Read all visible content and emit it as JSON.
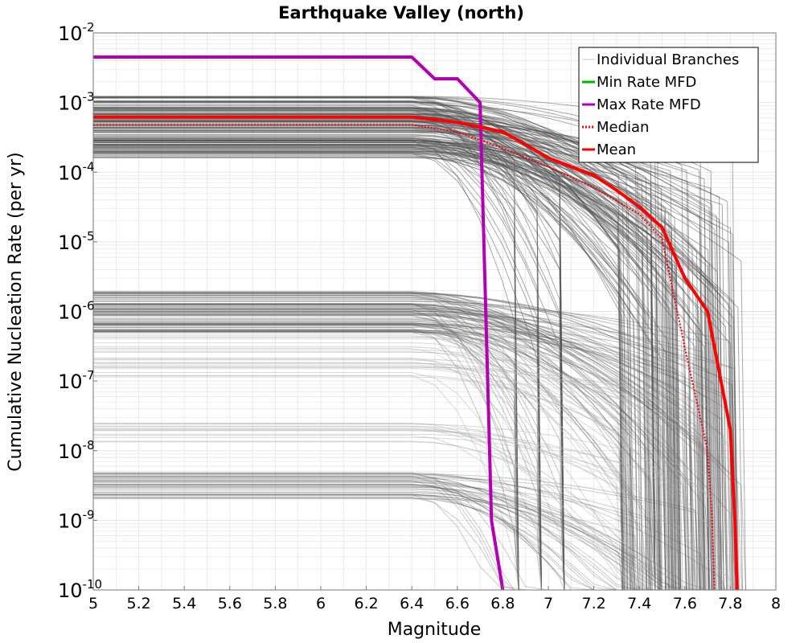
{
  "chart_data": {
    "type": "line",
    "title": "Earthquake Valley (north)",
    "xlabel": "Magnitude",
    "ylabel": "Cumulative Nucleation Rate (per yr)",
    "xlim": [
      5,
      8
    ],
    "ylim": [
      1e-10,
      0.01
    ],
    "yscale": "log",
    "grid": true,
    "legend_position": "top-right",
    "x_ticks": [
      "5",
      "5.2",
      "5.4",
      "5.6",
      "5.8",
      "6",
      "6.2",
      "6.4",
      "6.6",
      "6.8",
      "7",
      "7.2",
      "7.4",
      "7.6",
      "7.8",
      "8"
    ],
    "y_ticks": [
      {
        "base": "10",
        "exp": "-2"
      },
      {
        "base": "10",
        "exp": "-3"
      },
      {
        "base": "10",
        "exp": "-4"
      },
      {
        "base": "10",
        "exp": "-5"
      },
      {
        "base": "10",
        "exp": "-6"
      },
      {
        "base": "10",
        "exp": "-7"
      },
      {
        "base": "10",
        "exp": "-8"
      },
      {
        "base": "10",
        "exp": "-9"
      },
      {
        "base": "10",
        "exp": "-10"
      }
    ],
    "series": [
      {
        "name": "Max Rate MFD",
        "color": "#b400b4",
        "x": [
          5.0,
          6.4,
          6.5,
          6.6,
          6.7,
          6.75,
          6.8
        ],
        "y": [
          0.0045,
          0.0045,
          0.0022,
          0.0022,
          0.001,
          1e-09,
          1e-10
        ]
      },
      {
        "name": "Min Rate MFD",
        "color": "#00b400",
        "x": [],
        "y": []
      },
      {
        "name": "Median",
        "color": "#ff0000",
        "style": "dotted",
        "x": [
          5.0,
          6.4,
          6.6,
          6.8,
          7.0,
          7.2,
          7.4,
          7.5,
          7.6,
          7.7,
          7.72,
          7.73
        ],
        "y": [
          0.00048,
          0.00048,
          0.00038,
          0.00022,
          0.00012,
          6e-05,
          2.5e-05,
          1.1e-05,
          3e-07,
          1e-08,
          1e-09,
          1e-10
        ]
      },
      {
        "name": "Mean",
        "color": "#ff0000",
        "x": [
          5.0,
          6.4,
          6.6,
          6.8,
          6.9,
          7.0,
          7.2,
          7.3,
          7.4,
          7.5,
          7.6,
          7.7,
          7.8,
          7.82,
          7.83
        ],
        "y": [
          0.00062,
          0.00062,
          0.00052,
          0.00038,
          0.00025,
          0.00016,
          9e-05,
          5.5e-05,
          3.2e-05,
          1.6e-05,
          3e-06,
          1e-06,
          2e-08,
          1e-09,
          1e-10
        ]
      }
    ],
    "branches_label": "Individual Branches",
    "legend": [
      {
        "label": "Individual Branches",
        "color": "#c8c8c8",
        "style": "solid"
      },
      {
        "label": "Min Rate MFD",
        "color": "#00b400",
        "style": "solid"
      },
      {
        "label": "Max Rate MFD",
        "color": "#b400b4",
        "style": "solid"
      },
      {
        "label": "Median",
        "color": "#ff0000",
        "style": "dotted"
      },
      {
        "label": "Mean",
        "color": "#ff0000",
        "style": "solid"
      }
    ],
    "colors": {
      "branch": "#555555",
      "branch_light": "#b4b4b4",
      "grid": "#e6e6e6"
    }
  }
}
